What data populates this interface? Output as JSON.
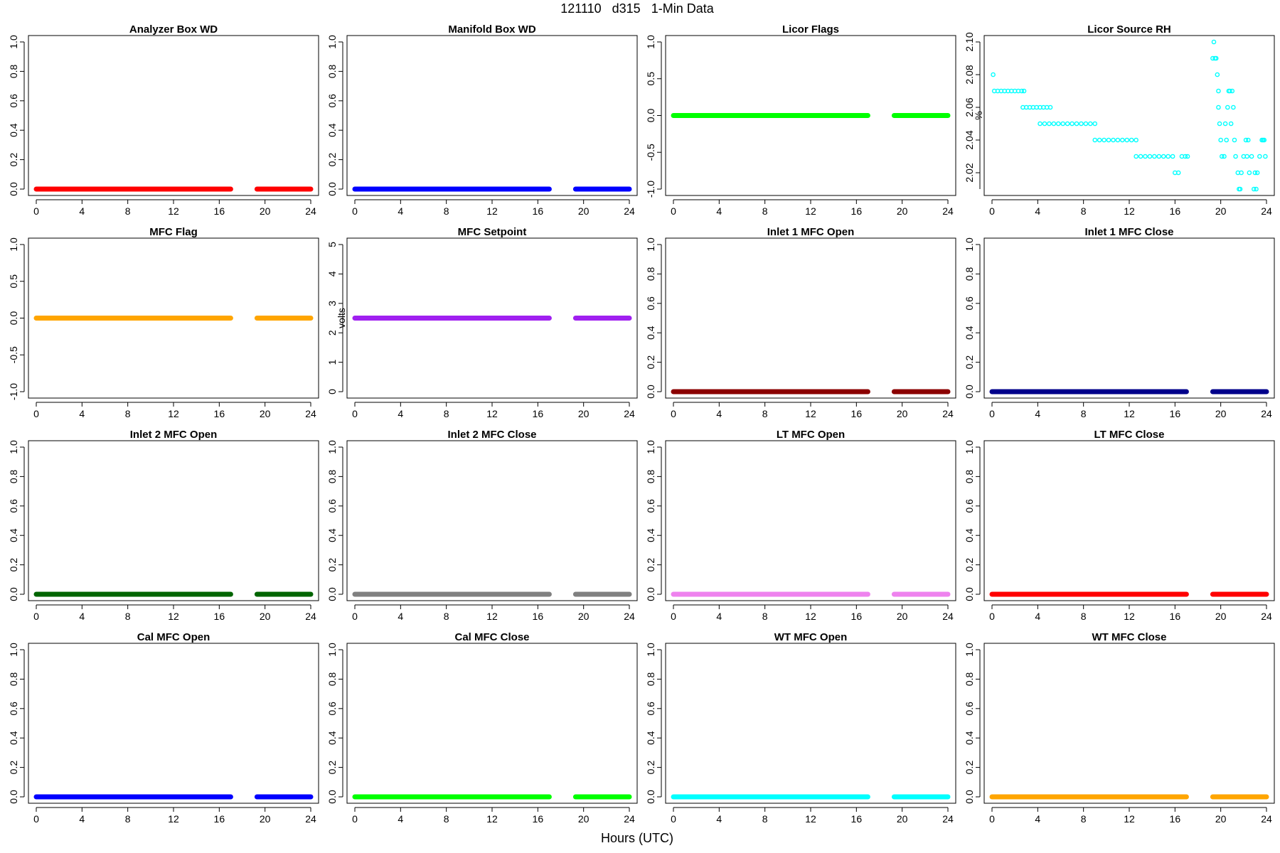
{
  "figure": {
    "title": "121110   d315   1-Min Data",
    "xlabel": "Hours (UTC)"
  },
  "chart_data": [
    {
      "type": "line",
      "title": "Analyzer Box WD",
      "ylabel": "",
      "color": "#ff0000",
      "xlim": [
        0,
        24
      ],
      "xticks": [
        "0",
        "4",
        "8",
        "12",
        "16",
        "20",
        "24"
      ],
      "ylim": [
        0,
        1
      ],
      "yticks": [
        "0.0",
        "0.2",
        "0.4",
        "0.6",
        "0.8",
        "1.0"
      ],
      "segments": [
        {
          "x": [
            0,
            17
          ],
          "y": 0
        },
        {
          "x": [
            19.3,
            24
          ],
          "y": 0
        }
      ]
    },
    {
      "type": "line",
      "title": "Manifold Box WD",
      "ylabel": "",
      "color": "#0000ff",
      "xlim": [
        0,
        24
      ],
      "xticks": [
        "0",
        "4",
        "8",
        "12",
        "16",
        "20",
        "24"
      ],
      "ylim": [
        0,
        1
      ],
      "yticks": [
        "0.0",
        "0.2",
        "0.4",
        "0.6",
        "0.8",
        "1.0"
      ],
      "segments": [
        {
          "x": [
            0,
            17
          ],
          "y": 0
        },
        {
          "x": [
            19.3,
            24
          ],
          "y": 0
        }
      ]
    },
    {
      "type": "line",
      "title": "Licor Flags",
      "ylabel": "",
      "color": "#00ff00",
      "xlim": [
        0,
        24
      ],
      "xticks": [
        "0",
        "4",
        "8",
        "12",
        "16",
        "20",
        "24"
      ],
      "ylim": [
        -1,
        1
      ],
      "yticks": [
        "-1.0",
        "-0.5",
        "0.0",
        "0.5",
        "1.0"
      ],
      "segments": [
        {
          "x": [
            0,
            17
          ],
          "y": 0
        },
        {
          "x": [
            19.3,
            24
          ],
          "y": 0
        }
      ]
    },
    {
      "type": "scatter",
      "title": "Licor Source RH",
      "ylabel": "%",
      "color": "#00ffff",
      "xlim": [
        0,
        24
      ],
      "xticks": [
        "0",
        "4",
        "8",
        "12",
        "16",
        "20",
        "24"
      ],
      "ylim": [
        2.01,
        2.1
      ],
      "yticks": [
        "2.02",
        "2.04",
        "2.06",
        "2.08",
        "2.10"
      ],
      "points": [
        [
          0.1,
          2.08
        ],
        [
          0.2,
          2.07
        ],
        [
          0.5,
          2.07
        ],
        [
          0.8,
          2.07
        ],
        [
          1.1,
          2.07
        ],
        [
          1.4,
          2.07
        ],
        [
          1.7,
          2.07
        ],
        [
          2.0,
          2.07
        ],
        [
          2.3,
          2.07
        ],
        [
          2.6,
          2.07
        ],
        [
          2.8,
          2.07
        ],
        [
          2.7,
          2.06
        ],
        [
          3.0,
          2.06
        ],
        [
          3.3,
          2.06
        ],
        [
          3.6,
          2.06
        ],
        [
          3.9,
          2.06
        ],
        [
          4.2,
          2.06
        ],
        [
          4.5,
          2.06
        ],
        [
          4.8,
          2.06
        ],
        [
          5.1,
          2.06
        ],
        [
          4.2,
          2.05
        ],
        [
          4.6,
          2.05
        ],
        [
          5.0,
          2.05
        ],
        [
          5.4,
          2.05
        ],
        [
          5.8,
          2.05
        ],
        [
          6.2,
          2.05
        ],
        [
          6.6,
          2.05
        ],
        [
          7.0,
          2.05
        ],
        [
          7.4,
          2.05
        ],
        [
          7.8,
          2.05
        ],
        [
          8.2,
          2.05
        ],
        [
          8.6,
          2.05
        ],
        [
          9.0,
          2.05
        ],
        [
          9.0,
          2.04
        ],
        [
          9.4,
          2.04
        ],
        [
          9.8,
          2.04
        ],
        [
          10.2,
          2.04
        ],
        [
          10.6,
          2.04
        ],
        [
          11.0,
          2.04
        ],
        [
          11.4,
          2.04
        ],
        [
          11.8,
          2.04
        ],
        [
          12.2,
          2.04
        ],
        [
          12.6,
          2.04
        ],
        [
          12.6,
          2.03
        ],
        [
          13.0,
          2.03
        ],
        [
          13.4,
          2.03
        ],
        [
          13.8,
          2.03
        ],
        [
          14.2,
          2.03
        ],
        [
          14.6,
          2.03
        ],
        [
          15.0,
          2.03
        ],
        [
          15.4,
          2.03
        ],
        [
          15.8,
          2.03
        ],
        [
          16.6,
          2.03
        ],
        [
          16.9,
          2.03
        ],
        [
          17.1,
          2.03
        ],
        [
          16.0,
          2.02
        ],
        [
          16.3,
          2.02
        ],
        [
          19.3,
          2.09
        ],
        [
          19.5,
          2.09
        ],
        [
          19.6,
          2.09
        ],
        [
          19.4,
          2.1
        ],
        [
          19.7,
          2.08
        ],
        [
          19.8,
          2.07
        ],
        [
          19.8,
          2.06
        ],
        [
          19.9,
          2.05
        ],
        [
          20.0,
          2.04
        ],
        [
          20.1,
          2.03
        ],
        [
          20.3,
          2.03
        ],
        [
          20.4,
          2.05
        ],
        [
          20.5,
          2.04
        ],
        [
          20.6,
          2.06
        ],
        [
          20.7,
          2.07
        ],
        [
          20.8,
          2.07
        ],
        [
          21.0,
          2.07
        ],
        [
          20.9,
          2.05
        ],
        [
          21.1,
          2.06
        ],
        [
          21.2,
          2.04
        ],
        [
          21.3,
          2.03
        ],
        [
          21.5,
          2.02
        ],
        [
          21.6,
          2.01
        ],
        [
          21.7,
          2.01
        ],
        [
          21.8,
          2.02
        ],
        [
          22.0,
          2.03
        ],
        [
          22.2,
          2.04
        ],
        [
          22.4,
          2.04
        ],
        [
          22.3,
          2.03
        ],
        [
          22.5,
          2.02
        ],
        [
          22.7,
          2.03
        ],
        [
          22.9,
          2.01
        ],
        [
          23.0,
          2.02
        ],
        [
          23.1,
          2.01
        ],
        [
          23.2,
          2.02
        ],
        [
          23.4,
          2.03
        ],
        [
          23.6,
          2.04
        ],
        [
          23.7,
          2.04
        ],
        [
          23.9,
          2.03
        ],
        [
          23.8,
          2.04
        ]
      ]
    },
    {
      "type": "line",
      "title": "MFC Flag",
      "ylabel": "",
      "color": "#ffa500",
      "xlim": [
        0,
        24
      ],
      "xticks": [
        "0",
        "4",
        "8",
        "12",
        "16",
        "20",
        "24"
      ],
      "ylim": [
        -1,
        1
      ],
      "yticks": [
        "-1.0",
        "-0.5",
        "0.0",
        "0.5",
        "1.0"
      ],
      "segments": [
        {
          "x": [
            0,
            17
          ],
          "y": 0
        },
        {
          "x": [
            19.3,
            24
          ],
          "y": 0
        }
      ]
    },
    {
      "type": "line",
      "title": "MFC Setpoint",
      "ylabel": "volts",
      "color": "#a020f0",
      "xlim": [
        0,
        24
      ],
      "xticks": [
        "0",
        "4",
        "8",
        "12",
        "16",
        "20",
        "24"
      ],
      "ylim": [
        0,
        5
      ],
      "yticks": [
        "0",
        "1",
        "2",
        "3",
        "4",
        "5"
      ],
      "segments": [
        {
          "x": [
            0,
            17
          ],
          "y": 2.5
        },
        {
          "x": [
            19.3,
            24
          ],
          "y": 2.5
        }
      ]
    },
    {
      "type": "line",
      "title": "Inlet 1 MFC Open",
      "ylabel": "",
      "color": "#8b0000",
      "xlim": [
        0,
        24
      ],
      "xticks": [
        "0",
        "4",
        "8",
        "12",
        "16",
        "20",
        "24"
      ],
      "ylim": [
        0,
        1
      ],
      "yticks": [
        "0.0",
        "0.2",
        "0.4",
        "0.6",
        "0.8",
        "1.0"
      ],
      "segments": [
        {
          "x": [
            0,
            17
          ],
          "y": 0
        },
        {
          "x": [
            19.3,
            24
          ],
          "y": 0
        }
      ]
    },
    {
      "type": "line",
      "title": "Inlet 1 MFC Close",
      "ylabel": "",
      "color": "#00008b",
      "xlim": [
        0,
        24
      ],
      "xticks": [
        "0",
        "4",
        "8",
        "12",
        "16",
        "20",
        "24"
      ],
      "ylim": [
        0,
        1
      ],
      "yticks": [
        "0.0",
        "0.2",
        "0.4",
        "0.6",
        "0.8",
        "1.0"
      ],
      "segments": [
        {
          "x": [
            0,
            17
          ],
          "y": 0
        },
        {
          "x": [
            19.3,
            24
          ],
          "y": 0
        }
      ]
    },
    {
      "type": "line",
      "title": "Inlet 2 MFC Open",
      "ylabel": "",
      "color": "#006400",
      "xlim": [
        0,
        24
      ],
      "xticks": [
        "0",
        "4",
        "8",
        "12",
        "16",
        "20",
        "24"
      ],
      "ylim": [
        0,
        1
      ],
      "yticks": [
        "0.0",
        "0.2",
        "0.4",
        "0.6",
        "0.8",
        "1.0"
      ],
      "segments": [
        {
          "x": [
            0,
            17
          ],
          "y": 0
        },
        {
          "x": [
            19.3,
            24
          ],
          "y": 0
        }
      ]
    },
    {
      "type": "line",
      "title": "Inlet 2 MFC Close",
      "ylabel": "",
      "color": "#808080",
      "xlim": [
        0,
        24
      ],
      "xticks": [
        "0",
        "4",
        "8",
        "12",
        "16",
        "20",
        "24"
      ],
      "ylim": [
        0,
        1
      ],
      "yticks": [
        "0.0",
        "0.2",
        "0.4",
        "0.6",
        "0.8",
        "1.0"
      ],
      "segments": [
        {
          "x": [
            0,
            17
          ],
          "y": 0
        },
        {
          "x": [
            19.3,
            24
          ],
          "y": 0
        }
      ]
    },
    {
      "type": "line",
      "title": "LT MFC Open",
      "ylabel": "",
      "color": "#ee82ee",
      "xlim": [
        0,
        24
      ],
      "xticks": [
        "0",
        "4",
        "8",
        "12",
        "16",
        "20",
        "24"
      ],
      "ylim": [
        0,
        1
      ],
      "yticks": [
        "0.0",
        "0.2",
        "0.4",
        "0.6",
        "0.8",
        "1.0"
      ],
      "segments": [
        {
          "x": [
            0,
            17
          ],
          "y": 0
        },
        {
          "x": [
            19.3,
            24
          ],
          "y": 0
        }
      ]
    },
    {
      "type": "line",
      "title": "LT MFC Close",
      "ylabel": "",
      "color": "#ff0000",
      "xlim": [
        0,
        24
      ],
      "xticks": [
        "0",
        "4",
        "8",
        "12",
        "16",
        "20",
        "24"
      ],
      "ylim": [
        0,
        1
      ],
      "yticks": [
        "0.0",
        "0.2",
        "0.4",
        "0.6",
        "0.8",
        "1.0"
      ],
      "segments": [
        {
          "x": [
            0,
            17
          ],
          "y": 0
        },
        {
          "x": [
            19.3,
            24
          ],
          "y": 0
        }
      ]
    },
    {
      "type": "line",
      "title": "Cal MFC Open",
      "ylabel": "",
      "color": "#0000ff",
      "xlim": [
        0,
        24
      ],
      "xticks": [
        "0",
        "4",
        "8",
        "12",
        "16",
        "20",
        "24"
      ],
      "ylim": [
        0,
        1
      ],
      "yticks": [
        "0.0",
        "0.2",
        "0.4",
        "0.6",
        "0.8",
        "1.0"
      ],
      "segments": [
        {
          "x": [
            0,
            17
          ],
          "y": 0
        },
        {
          "x": [
            19.3,
            24
          ],
          "y": 0
        }
      ]
    },
    {
      "type": "line",
      "title": "Cal MFC Close",
      "ylabel": "",
      "color": "#00ff00",
      "xlim": [
        0,
        24
      ],
      "xticks": [
        "0",
        "4",
        "8",
        "12",
        "16",
        "20",
        "24"
      ],
      "ylim": [
        0,
        1
      ],
      "yticks": [
        "0.0",
        "0.2",
        "0.4",
        "0.6",
        "0.8",
        "1.0"
      ],
      "segments": [
        {
          "x": [
            0,
            17
          ],
          "y": 0
        },
        {
          "x": [
            19.3,
            24
          ],
          "y": 0
        }
      ]
    },
    {
      "type": "line",
      "title": "WT MFC Open",
      "ylabel": "",
      "color": "#00ffff",
      "xlim": [
        0,
        24
      ],
      "xticks": [
        "0",
        "4",
        "8",
        "12",
        "16",
        "20",
        "24"
      ],
      "ylim": [
        0,
        1
      ],
      "yticks": [
        "0.0",
        "0.2",
        "0.4",
        "0.6",
        "0.8",
        "1.0"
      ],
      "segments": [
        {
          "x": [
            0,
            17
          ],
          "y": 0
        },
        {
          "x": [
            19.3,
            24
          ],
          "y": 0
        }
      ]
    },
    {
      "type": "line",
      "title": "WT MFC Close",
      "ylabel": "",
      "color": "#ffa500",
      "xlim": [
        0,
        24
      ],
      "xticks": [
        "0",
        "4",
        "8",
        "12",
        "16",
        "20",
        "24"
      ],
      "ylim": [
        0,
        1
      ],
      "yticks": [
        "0.0",
        "0.2",
        "0.4",
        "0.6",
        "0.8",
        "1.0"
      ],
      "segments": [
        {
          "x": [
            0,
            17
          ],
          "y": 0
        },
        {
          "x": [
            19.3,
            24
          ],
          "y": 0
        }
      ]
    }
  ]
}
